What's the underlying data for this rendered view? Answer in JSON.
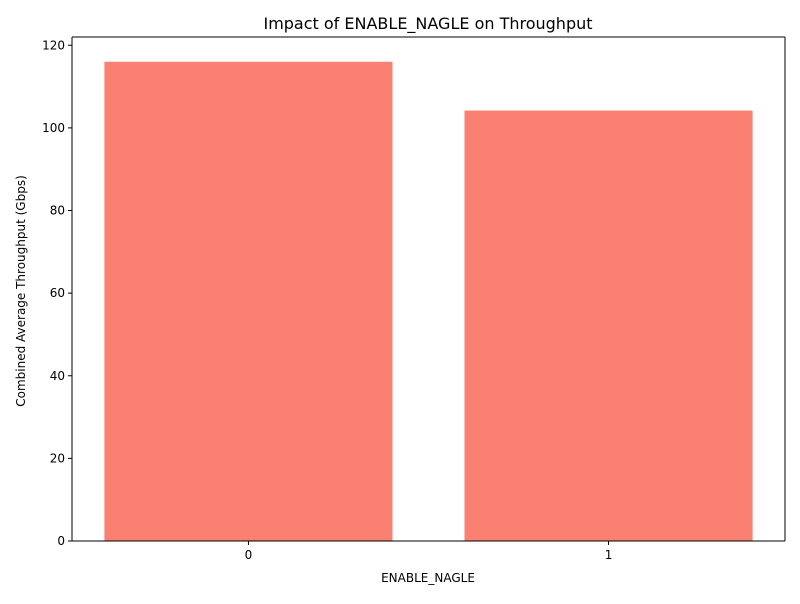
{
  "chart_data": {
    "type": "bar",
    "title": "Impact of ENABLE_NAGLE on Throughput",
    "xlabel": "ENABLE_NAGLE",
    "ylabel": "Combined Average Throughput (Gbps)",
    "categories": [
      "0",
      "1"
    ],
    "values": [
      116.0,
      104.2
    ],
    "ylim": [
      0,
      122
    ],
    "yticks": [
      0,
      20,
      40,
      60,
      80,
      100,
      120
    ],
    "grid": false,
    "legend": "none",
    "bar_color": "#fa8072"
  }
}
